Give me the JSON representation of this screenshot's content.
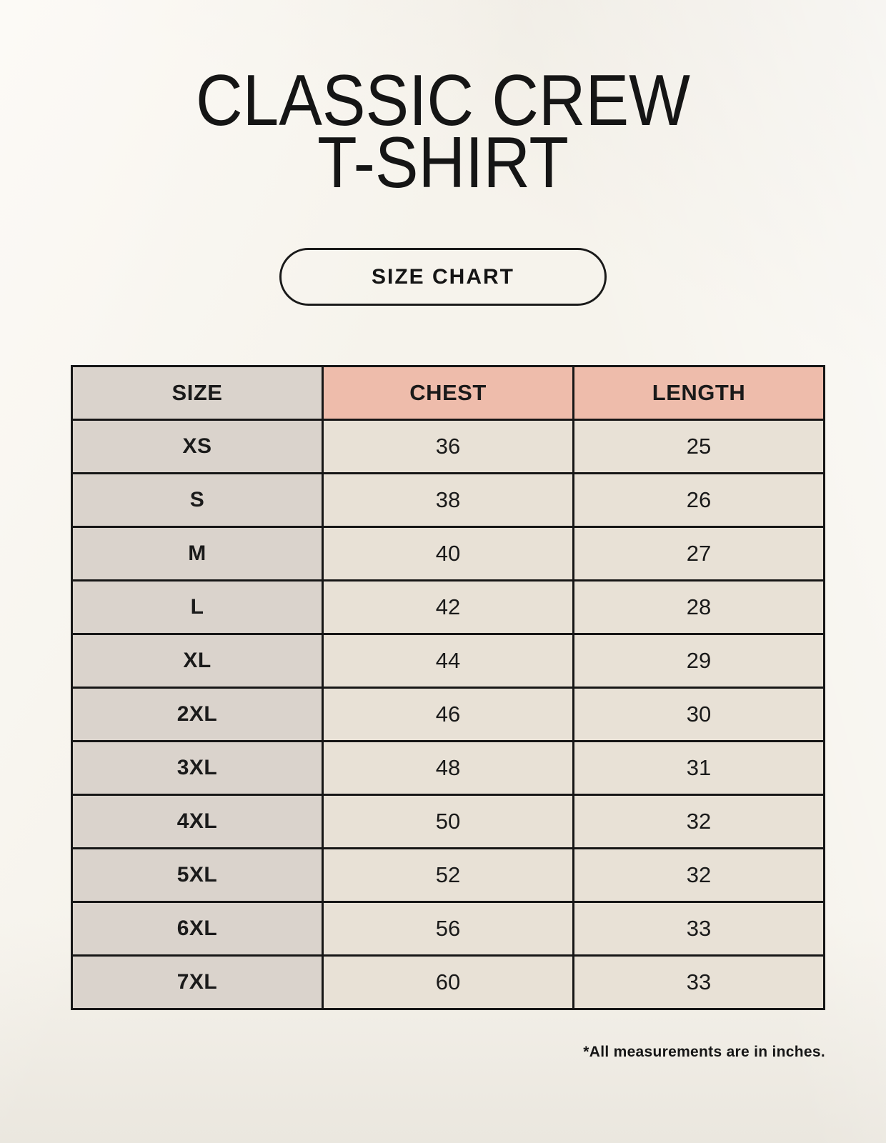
{
  "header": {
    "title_line1": "CLASSIC CREW",
    "title_line2": "T-SHIRT",
    "badge": "SIZE CHART"
  },
  "chart_data": {
    "type": "table",
    "title": "CLASSIC CREW T-SHIRT",
    "columns": [
      "SIZE",
      "CHEST",
      "LENGTH"
    ],
    "rows": [
      [
        "XS",
        "36",
        "25"
      ],
      [
        "S",
        "38",
        "26"
      ],
      [
        "M",
        "40",
        "27"
      ],
      [
        "L",
        "42",
        "28"
      ],
      [
        "XL",
        "44",
        "29"
      ],
      [
        "2XL",
        "46",
        "30"
      ],
      [
        "3XL",
        "48",
        "31"
      ],
      [
        "4XL",
        "50",
        "32"
      ],
      [
        "5XL",
        "52",
        "32"
      ],
      [
        "6XL",
        "56",
        "33"
      ],
      [
        "7XL",
        "60",
        "33"
      ]
    ],
    "units": "inches",
    "footnote": "*All measurements are in inches."
  },
  "colors": {
    "background": "#f6f3ec",
    "table_border": "#161616",
    "header_accent": "#eebcab",
    "size_column": "#dad3cc",
    "value_cell": "#e8e1d6",
    "text": "#1a1a1a"
  }
}
